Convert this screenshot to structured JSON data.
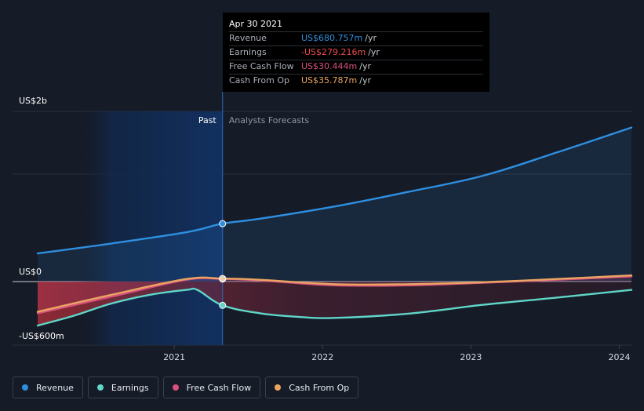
{
  "colors": {
    "background": "#151b27",
    "revenue": "#2e8fe0",
    "earnings": "#5fd6c8",
    "free_cash_flow": "#d9507d",
    "cash_from_op": "#e8a562",
    "past_shade": "#12284a",
    "grid": "#2a3140"
  },
  "tooltip": {
    "date": "Apr 30 2021",
    "rows": [
      {
        "name": "Revenue",
        "value": "US$680.757m",
        "unit": "/yr",
        "color": "#2e8fe0"
      },
      {
        "name": "Earnings",
        "value": "-US$279.216m",
        "unit": "/yr",
        "color": "#ef4b4b"
      },
      {
        "name": "Free Cash Flow",
        "value": "US$30.444m",
        "unit": "/yr",
        "color": "#d9507d"
      },
      {
        "name": "Cash From Op",
        "value": "US$35.787m",
        "unit": "/yr",
        "color": "#e8a562"
      }
    ]
  },
  "chart_data": {
    "type": "area",
    "y_tick_labels": [
      "US$2b",
      "US$0",
      "-US$600m"
    ],
    "x_tick_labels": [
      "2021",
      "2022",
      "2023",
      "2024"
    ],
    "past_label": "Past",
    "forecast_label": "Analysts Forecasts",
    "divider_date": "2021-04-30",
    "ylim": [
      -600,
      2000
    ],
    "y_unit": "US$m",
    "series": [
      {
        "name": "Revenue",
        "color": "#2e8fe0",
        "points": [
          [
            "2020-01-31",
            331
          ],
          [
            "2020-07-31",
            448
          ],
          [
            "2021-01-31",
            580
          ],
          [
            "2021-04-30",
            681
          ],
          [
            "2021-07-31",
            739
          ],
          [
            "2022-01-31",
            883
          ],
          [
            "2022-07-31",
            1054
          ],
          [
            "2023-01-31",
            1244
          ],
          [
            "2023-07-31",
            1517
          ],
          [
            "2024-01-31",
            1810
          ]
        ]
      },
      {
        "name": "Earnings",
        "color": "#5fd6c8",
        "points": [
          [
            "2020-01-31",
            -517
          ],
          [
            "2020-04-30",
            -400
          ],
          [
            "2020-07-31",
            -257
          ],
          [
            "2020-10-31",
            -158
          ],
          [
            "2021-01-31",
            -98
          ],
          [
            "2021-02-28",
            -100
          ],
          [
            "2021-04-30",
            -279
          ],
          [
            "2021-07-31",
            -372
          ],
          [
            "2021-10-31",
            -414
          ],
          [
            "2022-01-31",
            -427
          ],
          [
            "2022-07-31",
            -377
          ],
          [
            "2023-01-31",
            -273
          ],
          [
            "2023-07-31",
            -188
          ],
          [
            "2024-01-31",
            -98
          ]
        ]
      },
      {
        "name": "Free Cash Flow",
        "color": "#d9507d",
        "points": [
          [
            "2020-01-31",
            -372
          ],
          [
            "2020-07-31",
            -176
          ],
          [
            "2021-01-31",
            21
          ],
          [
            "2021-04-30",
            30
          ],
          [
            "2021-07-31",
            13
          ],
          [
            "2022-01-31",
            -44
          ],
          [
            "2022-07-31",
            -44
          ],
          [
            "2023-01-31",
            -14
          ],
          [
            "2023-07-31",
            21
          ],
          [
            "2024-01-31",
            61
          ]
        ]
      },
      {
        "name": "Cash From Op",
        "color": "#e8a562",
        "points": [
          [
            "2020-01-31",
            -355
          ],
          [
            "2020-07-31",
            -155
          ],
          [
            "2021-01-31",
            30
          ],
          [
            "2021-04-30",
            36
          ],
          [
            "2021-07-31",
            21
          ],
          [
            "2022-01-31",
            -30
          ],
          [
            "2022-07-31",
            -30
          ],
          [
            "2023-01-31",
            -7
          ],
          [
            "2023-07-31",
            30
          ],
          [
            "2024-01-31",
            73
          ]
        ]
      }
    ],
    "highlight_date": "2021-04-30",
    "highlight_values": {
      "Revenue": 680.757,
      "Earnings": -279.216,
      "Free Cash Flow": 30.444,
      "Cash From Op": 35.787
    }
  },
  "legend": {
    "items": [
      {
        "label": "Revenue",
        "color": "#2e8fe0"
      },
      {
        "label": "Earnings",
        "color": "#5fd6c8"
      },
      {
        "label": "Free Cash Flow",
        "color": "#d9507d"
      },
      {
        "label": "Cash From Op",
        "color": "#e8a562"
      }
    ]
  }
}
